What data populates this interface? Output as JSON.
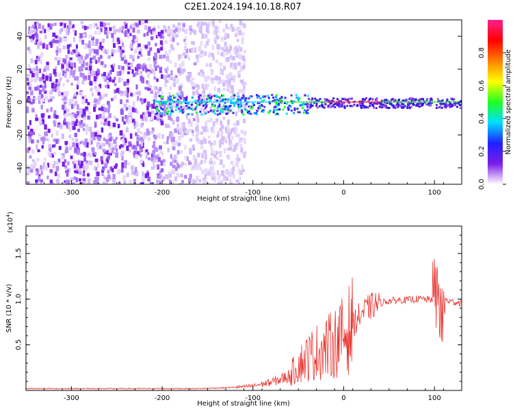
{
  "title": "C2E1.2024.194.10.18.R07",
  "colors": {
    "red_line": "#e8302a",
    "spectrum_purple": "#7a1ee8",
    "axis": "#000000"
  },
  "chart_data": [
    {
      "type": "heatmap",
      "xlabel": "Height of straight line (km)",
      "ylabel": "Frequency (Hz)",
      "xlim": [
        -350,
        130
      ],
      "ylim": [
        -50,
        50
      ],
      "x_ticks": [
        -300,
        -200,
        -100,
        0,
        100
      ],
      "x_tick_labels": [
        "-300",
        "-200",
        "-100",
        "0",
        "100"
      ],
      "y_ticks": [
        -40,
        -20,
        0,
        20,
        40
      ],
      "y_tick_labels": [
        "-40",
        "-20",
        "0",
        "20",
        "40"
      ],
      "colorbar": {
        "label": "Normalized spectral amplitude",
        "range": [
          0,
          1
        ],
        "ticks": [
          0.0,
          0.2,
          0.4,
          0.6,
          0.8
        ],
        "tick_labels": [
          "0.0",
          "0.2",
          "0.4",
          "0.6",
          "0.8"
        ],
        "colormap": [
          "#ffffff",
          "#7a1ee8",
          "#2020ff",
          "#00e0ff",
          "#20ff20",
          "#ffff00",
          "#ff8000",
          "#ff0000",
          "#ff2090"
        ]
      },
      "grid": false
    },
    {
      "type": "line",
      "xlabel": "Height of straight line (km)",
      "ylabel": "SNR (10 * v/v)",
      "scale_label": "(x10",
      "scale_exponent": "4",
      "scale_suffix": ")",
      "xlim": [
        -350,
        130
      ],
      "ylim": [
        0,
        1.8
      ],
      "x_ticks": [
        -300,
        -200,
        -100,
        0,
        100
      ],
      "x_tick_labels": [
        "-300",
        "-200",
        "-100",
        "0",
        "100"
      ],
      "y_ticks": [
        0.5,
        1.0,
        1.5
      ],
      "y_tick_labels": [
        "0.5",
        "1.0",
        "1.5"
      ],
      "grid": false,
      "series": [
        {
          "x": [
            -350,
            -300,
            -250,
            -200,
            -160,
            -130,
            -110,
            -100,
            -90,
            -80,
            -70,
            -60,
            -50,
            -40,
            -30,
            -20,
            -10,
            0,
            10,
            20,
            30,
            40,
            50,
            60,
            70,
            80,
            90,
            95,
            100,
            105,
            108,
            110,
            115,
            120,
            130
          ],
          "y": [
            0.02,
            0.02,
            0.02,
            0.02,
            0.02,
            0.03,
            0.04,
            0.05,
            0.07,
            0.09,
            0.12,
            0.16,
            0.28,
            0.36,
            0.42,
            0.46,
            0.52,
            0.6,
            0.72,
            0.85,
            0.92,
            0.96,
            0.98,
            0.99,
            0.99,
            1.0,
            1.0,
            0.99,
            1.02,
            1.1,
            0.6,
            1.0,
            0.98,
            0.97,
            0.96
          ]
        }
      ]
    }
  ]
}
